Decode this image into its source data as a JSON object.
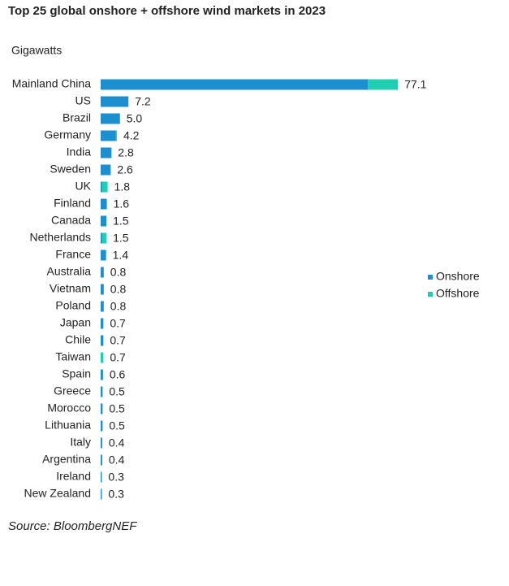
{
  "chart_data": {
    "type": "stacked-bar-horizontal",
    "title": "Top 25 global onshore + offshore wind markets in 2023",
    "unit_label": "Gigawatts",
    "source": "Source: BloombergNEF",
    "categories": [
      "Mainland China",
      "US",
      "Brazil",
      "Germany",
      "India",
      "Sweden",
      "UK",
      "Finland",
      "Canada",
      "Netherlands",
      "France",
      "Australia",
      "Vietnam",
      "Poland",
      "Japan",
      "Chile",
      "Taiwan",
      "Spain",
      "Greece",
      "Morocco",
      "Lithuania",
      "Italy",
      "Argentina",
      "Ireland",
      "New Zealand"
    ],
    "series": [
      {
        "name": "Onshore",
        "color": "#1c8fd0",
        "values": [
          69.3,
          7.2,
          5.0,
          3.9,
          2.8,
          2.6,
          0.4,
          1.6,
          1.5,
          0.4,
          1.4,
          0.8,
          0.8,
          0.8,
          0.7,
          0.7,
          0,
          0.6,
          0.5,
          0.5,
          0.5,
          0.4,
          0.4,
          0.3,
          0.3
        ]
      },
      {
        "name": "Offshore",
        "color": "#1ecfb2",
        "values": [
          7.8,
          0,
          0,
          0.3,
          0,
          0,
          1.4,
          0,
          0,
          1.1,
          0,
          0,
          0,
          0,
          0,
          0,
          0.7,
          0,
          0,
          0,
          0,
          0,
          0,
          0,
          0
        ]
      }
    ],
    "totals": [
      77.1,
      7.2,
      5.0,
      4.2,
      2.8,
      2.6,
      1.8,
      1.6,
      1.5,
      1.5,
      1.4,
      0.8,
      0.8,
      0.8,
      0.7,
      0.7,
      0.7,
      0.6,
      0.5,
      0.5,
      0.5,
      0.4,
      0.4,
      0.3,
      0.3
    ],
    "total_labels": [
      "77.1",
      "7.2",
      "5.0",
      "4.2",
      "2.8",
      "2.6",
      "1.8",
      "1.6",
      "1.5",
      "1.5",
      "1.4",
      "0.8",
      "0.8",
      "0.8",
      "0.7",
      "0.7",
      "0.7",
      "0.6",
      "0.5",
      "0.5",
      "0.5",
      "0.4",
      "0.4",
      "0.3",
      "0.3"
    ],
    "legend": "right"
  }
}
